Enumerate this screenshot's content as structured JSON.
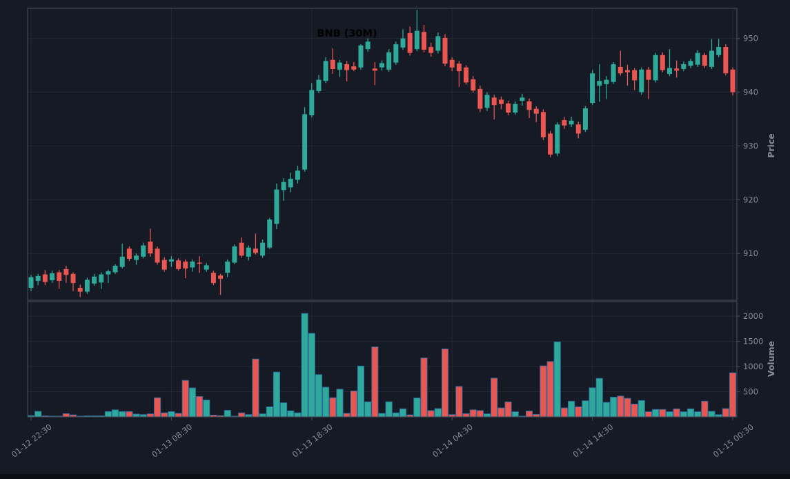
{
  "title": "BNB (30M)",
  "colors": {
    "background": "#151a24",
    "bottom_strip": "#0b0e13",
    "up": "#2EA99A",
    "down": "#EA5752",
    "volume_bar_edge": "#2B6FA5",
    "grid": "#232836",
    "spine": "#424856",
    "tick_text": "#878b98",
    "title_text": "#000000"
  },
  "chart_data": {
    "type": "candlestick",
    "symbol": "BNB",
    "interval": "30M",
    "title": "BNB (30M)",
    "grid": "on",
    "panels": [
      "price",
      "volume"
    ],
    "x_tick_labels": [
      "01-12 22:30",
      "01-13 08:30",
      "01-13 18:30",
      "01-14 04:30",
      "01-14 14:30",
      "01-15 00:30"
    ],
    "x_tick_positions": [
      0,
      20,
      40,
      60,
      80,
      100
    ],
    "price_axis": {
      "label": "Price",
      "ticks": [
        950,
        940,
        930,
        920,
        910
      ],
      "ylim": [
        901.3,
        955.6
      ],
      "side": "right"
    },
    "volume_axis": {
      "label": "Volume",
      "ticks": [
        2000,
        1500,
        1000,
        500
      ],
      "ylim": [
        0,
        2290
      ],
      "side": "right"
    },
    "ohlcv_format": [
      "open",
      "high",
      "low",
      "close",
      "volume"
    ],
    "candles": [
      [
        903.6,
        906.0,
        903.0,
        905.6,
        25
      ],
      [
        904.9,
        906.2,
        904.1,
        905.8,
        110
      ],
      [
        906.1,
        906.9,
        904.1,
        904.7,
        20
      ],
      [
        905.0,
        906.8,
        904.5,
        906.3,
        15
      ],
      [
        906.5,
        906.9,
        903.4,
        904.9,
        15
      ],
      [
        907.1,
        907.7,
        904.5,
        906.0,
        65
      ],
      [
        906.2,
        906.5,
        903.0,
        904.5,
        40
      ],
      [
        903.6,
        904.2,
        901.9,
        902.9,
        15
      ],
      [
        902.9,
        905.5,
        902.5,
        905.1,
        20
      ],
      [
        904.4,
        906.2,
        904.0,
        905.7,
        20
      ],
      [
        904.6,
        906.5,
        903.4,
        906.1,
        20
      ],
      [
        906.1,
        907.0,
        904.5,
        906.7,
        105
      ],
      [
        906.5,
        908.0,
        906.2,
        907.7,
        140
      ],
      [
        907.5,
        911.8,
        907.2,
        909.4,
        105
      ],
      [
        910.9,
        911.3,
        908.6,
        909.0,
        105
      ],
      [
        908.8,
        910.0,
        907.9,
        909.6,
        55
      ],
      [
        909.4,
        912.0,
        909.1,
        911.5,
        45
      ],
      [
        912.2,
        914.6,
        909.4,
        910.0,
        60
      ],
      [
        910.9,
        911.3,
        907.9,
        908.3,
        380
      ],
      [
        908.8,
        909.3,
        906.6,
        907.0,
        80
      ],
      [
        908.5,
        909.5,
        907.5,
        908.9,
        105
      ],
      [
        908.7,
        909.1,
        906.8,
        907.1,
        70
      ],
      [
        908.5,
        908.9,
        905.4,
        907.2,
        725
      ],
      [
        907.4,
        908.9,
        906.6,
        908.5,
        575
      ],
      [
        908.3,
        909.5,
        906.4,
        908.1,
        405
      ],
      [
        907.0,
        908.2,
        906.6,
        907.8,
        335
      ],
      [
        906.4,
        906.8,
        904.1,
        904.5,
        35
      ],
      [
        905.9,
        906.2,
        902.3,
        905.3,
        25
      ],
      [
        906.4,
        908.9,
        905.6,
        908.5,
        130
      ],
      [
        908.3,
        911.7,
        908.0,
        911.3,
        15
      ],
      [
        912.0,
        913.0,
        909.2,
        909.6,
        80
      ],
      [
        909.4,
        911.5,
        908.7,
        911.1,
        45
      ],
      [
        910.9,
        913.7,
        909.8,
        910.1,
        1150
      ],
      [
        909.6,
        912.6,
        909.2,
        912.0,
        60
      ],
      [
        911.1,
        916.6,
        910.8,
        916.3,
        200
      ],
      [
        915.5,
        923.0,
        914.5,
        921.9,
        890
      ],
      [
        921.8,
        924.0,
        919.8,
        923.3,
        280
      ],
      [
        922.3,
        925.0,
        921.4,
        923.9,
        120
      ],
      [
        923.7,
        926.3,
        923.0,
        925.4,
        80
      ],
      [
        925.6,
        937.2,
        925.2,
        935.9,
        2055
      ],
      [
        935.7,
        941.7,
        935.3,
        940.4,
        1660
      ],
      [
        940.2,
        943.2,
        939.8,
        942.3,
        840
      ],
      [
        942.1,
        946.5,
        941.7,
        945.8,
        590
      ],
      [
        946.0,
        948.2,
        943.4,
        944.3,
        380
      ],
      [
        944.2,
        946.0,
        942.8,
        945.5,
        550
      ],
      [
        945.2,
        945.8,
        942.0,
        944.1,
        70
      ],
      [
        944.8,
        945.6,
        943.9,
        944.2,
        515
      ],
      [
        944.6,
        948.9,
        944.2,
        948.7,
        1010
      ],
      [
        948.0,
        950.0,
        947.5,
        949.4,
        300
      ],
      [
        944.4,
        945.6,
        941.3,
        944.0,
        1390
      ],
      [
        944.6,
        945.9,
        944.0,
        945.4,
        70
      ],
      [
        944.2,
        948.0,
        943.8,
        947.4,
        300
      ],
      [
        945.5,
        949.4,
        945.1,
        948.9,
        80
      ],
      [
        948.3,
        951.7,
        947.9,
        950.0,
        160
      ],
      [
        951.0,
        952.2,
        946.8,
        947.3,
        40
      ],
      [
        948.0,
        955.3,
        947.6,
        951.4,
        375
      ],
      [
        951.2,
        952.5,
        947.4,
        947.9,
        1170
      ],
      [
        948.4,
        949.2,
        946.6,
        947.3,
        125
      ],
      [
        947.7,
        951.1,
        947.2,
        950.4,
        165
      ],
      [
        950.1,
        950.8,
        944.8,
        945.3,
        1350
      ],
      [
        946.0,
        946.5,
        943.9,
        944.6,
        45
      ],
      [
        945.3,
        945.8,
        941.0,
        943.9,
        605
      ],
      [
        944.6,
        945.0,
        941.4,
        941.8,
        65
      ],
      [
        942.4,
        943.0,
        939.9,
        940.3,
        140
      ],
      [
        940.6,
        941.2,
        936.3,
        936.9,
        125
      ],
      [
        937.1,
        940.0,
        936.5,
        939.5,
        60
      ],
      [
        939.0,
        939.5,
        934.9,
        937.6,
        770
      ],
      [
        938.6,
        939.2,
        936.8,
        937.8,
        178
      ],
      [
        937.9,
        938.4,
        935.7,
        936.2,
        298
      ],
      [
        936.2,
        938.3,
        935.8,
        937.8,
        102
      ],
      [
        938.4,
        939.7,
        937.5,
        939.0,
        15
      ],
      [
        938.3,
        938.8,
        935.2,
        936.7,
        116
      ],
      [
        936.9,
        937.4,
        934.4,
        936.0,
        49
      ],
      [
        936.3,
        936.8,
        931.1,
        931.6,
        1014
      ],
      [
        932.3,
        932.8,
        927.9,
        928.4,
        1100
      ],
      [
        928.6,
        934.4,
        928.1,
        934.0,
        1490
      ],
      [
        934.8,
        935.4,
        933.2,
        933.8,
        178
      ],
      [
        934.0,
        935.4,
        933.5,
        934.7,
        311
      ],
      [
        934.0,
        934.5,
        931.4,
        932.3,
        200
      ],
      [
        933.0,
        937.4,
        932.6,
        937.0,
        320
      ],
      [
        938.0,
        944.1,
        937.6,
        943.5,
        578
      ],
      [
        941.2,
        945.2,
        938.2,
        942.1,
        765
      ],
      [
        941.5,
        943.0,
        938.7,
        942.3,
        289
      ],
      [
        941.9,
        945.6,
        941.5,
        945.2,
        391
      ],
      [
        944.7,
        947.7,
        943.1,
        943.5,
        414
      ],
      [
        944.1,
        945.1,
        941.2,
        943.7,
        369
      ],
      [
        944.1,
        944.5,
        940.4,
        942.2,
        255
      ],
      [
        940.0,
        944.6,
        939.5,
        944.2,
        325
      ],
      [
        944.2,
        944.7,
        938.7,
        942.3,
        102
      ],
      [
        942.2,
        947.3,
        941.8,
        946.9,
        147
      ],
      [
        946.9,
        947.4,
        943.7,
        944.1,
        147
      ],
      [
        943.4,
        948.0,
        943.0,
        944.5,
        102
      ],
      [
        944.4,
        945.9,
        942.7,
        944.0,
        160
      ],
      [
        944.3,
        945.7,
        943.9,
        945.2,
        102
      ],
      [
        944.9,
        946.2,
        944.5,
        945.8,
        160
      ],
      [
        945.1,
        947.8,
        944.7,
        947.3,
        102
      ],
      [
        946.9,
        947.3,
        944.5,
        944.9,
        311
      ],
      [
        944.7,
        949.9,
        944.3,
        947.7,
        111
      ],
      [
        946.9,
        949.9,
        946.5,
        948.4,
        44
      ],
      [
        948.4,
        948.9,
        943.1,
        943.5,
        165
      ],
      [
        944.2,
        944.6,
        939.4,
        940.0,
        876
      ]
    ]
  }
}
